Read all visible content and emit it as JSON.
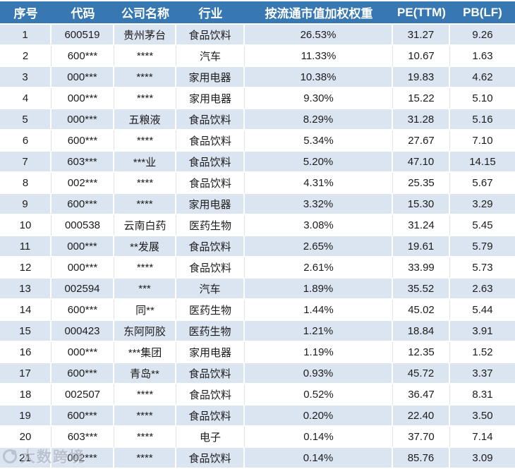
{
  "table": {
    "columns": [
      "序号",
      "代码",
      "公司名称",
      "行业",
      "按流通市值加权权重",
      "PE(TTM)",
      "PB(LF)"
    ],
    "rows": [
      {
        "idx": "1",
        "code": "600519",
        "name": "贵州茅台",
        "industry": "食品饮料",
        "weight": "26.53%",
        "pe": "31.27",
        "pb": "9.26"
      },
      {
        "idx": "2",
        "code": "600***",
        "name": "****",
        "industry": "汽车",
        "weight": "11.33%",
        "pe": "10.67",
        "pb": "1.63"
      },
      {
        "idx": "3",
        "code": "000***",
        "name": "****",
        "industry": "家用电器",
        "weight": "10.38%",
        "pe": "19.83",
        "pb": "4.62"
      },
      {
        "idx": "4",
        "code": "000***",
        "name": "****",
        "industry": "家用电器",
        "weight": "9.30%",
        "pe": "15.22",
        "pb": "5.10"
      },
      {
        "idx": "5",
        "code": "000***",
        "name": "五粮液",
        "industry": "食品饮料",
        "weight": "8.29%",
        "pe": "31.28",
        "pb": "5.16"
      },
      {
        "idx": "6",
        "code": "600***",
        "name": "****",
        "industry": "食品饮料",
        "weight": "5.34%",
        "pe": "27.67",
        "pb": "7.10"
      },
      {
        "idx": "7",
        "code": "603***",
        "name": "***业",
        "industry": "食品饮料",
        "weight": "5.20%",
        "pe": "47.10",
        "pb": "14.15"
      },
      {
        "idx": "8",
        "code": "002***",
        "name": "****",
        "industry": "食品饮料",
        "weight": "4.31%",
        "pe": "25.35",
        "pb": "5.67"
      },
      {
        "idx": "9",
        "code": "600***",
        "name": "****",
        "industry": "家用电器",
        "weight": "3.32%",
        "pe": "15.30",
        "pb": "3.29"
      },
      {
        "idx": "10",
        "code": "000538",
        "name": "云南白药",
        "industry": "医药生物",
        "weight": "3.08%",
        "pe": "31.24",
        "pb": "5.45"
      },
      {
        "idx": "11",
        "code": "000***",
        "name": "**发展",
        "industry": "食品饮料",
        "weight": "2.65%",
        "pe": "19.61",
        "pb": "5.79"
      },
      {
        "idx": "12",
        "code": "000***",
        "name": "****",
        "industry": "食品饮料",
        "weight": "2.61%",
        "pe": "33.99",
        "pb": "5.73"
      },
      {
        "idx": "13",
        "code": "002594",
        "name": "***",
        "industry": "汽车",
        "weight": "1.89%",
        "pe": "35.52",
        "pb": "2.63"
      },
      {
        "idx": "14",
        "code": "600***",
        "name": "同**",
        "industry": "医药生物",
        "weight": "1.44%",
        "pe": "45.02",
        "pb": "5.44"
      },
      {
        "idx": "15",
        "code": "000423",
        "name": "东阿阿胶",
        "industry": "医药生物",
        "weight": "1.21%",
        "pe": "18.84",
        "pb": "3.91"
      },
      {
        "idx": "16",
        "code": "000***",
        "name": "***集团",
        "industry": "家用电器",
        "weight": "1.19%",
        "pe": "12.35",
        "pb": "1.52"
      },
      {
        "idx": "17",
        "code": "600***",
        "name": "青岛**",
        "industry": "食品饮料",
        "weight": "0.93%",
        "pe": "45.72",
        "pb": "3.37"
      },
      {
        "idx": "18",
        "code": "002507",
        "name": "****",
        "industry": "食品饮料",
        "weight": "0.52%",
        "pe": "36.47",
        "pb": "8.31"
      },
      {
        "idx": "19",
        "code": "600***",
        "name": "****",
        "industry": "食品饮料",
        "weight": "0.20%",
        "pe": "22.40",
        "pb": "3.50"
      },
      {
        "idx": "20",
        "code": "603***",
        "name": "****",
        "industry": "电子",
        "weight": "0.14%",
        "pe": "37.70",
        "pb": "7.14"
      },
      {
        "idx": "21",
        "code": "002***",
        "name": "****",
        "industry": "食品饮料",
        "weight": "0.14%",
        "pe": "85.76",
        "pb": "3.09"
      }
    ]
  },
  "watermark": {
    "text": "大数跨境"
  },
  "colors": {
    "header_bg": "#3878B2",
    "alt_row_bg": "#DBE5F1",
    "row_bg": "#FFFFFF",
    "header_text": "#FFFFFF",
    "cell_text": "#1C1C1C"
  }
}
